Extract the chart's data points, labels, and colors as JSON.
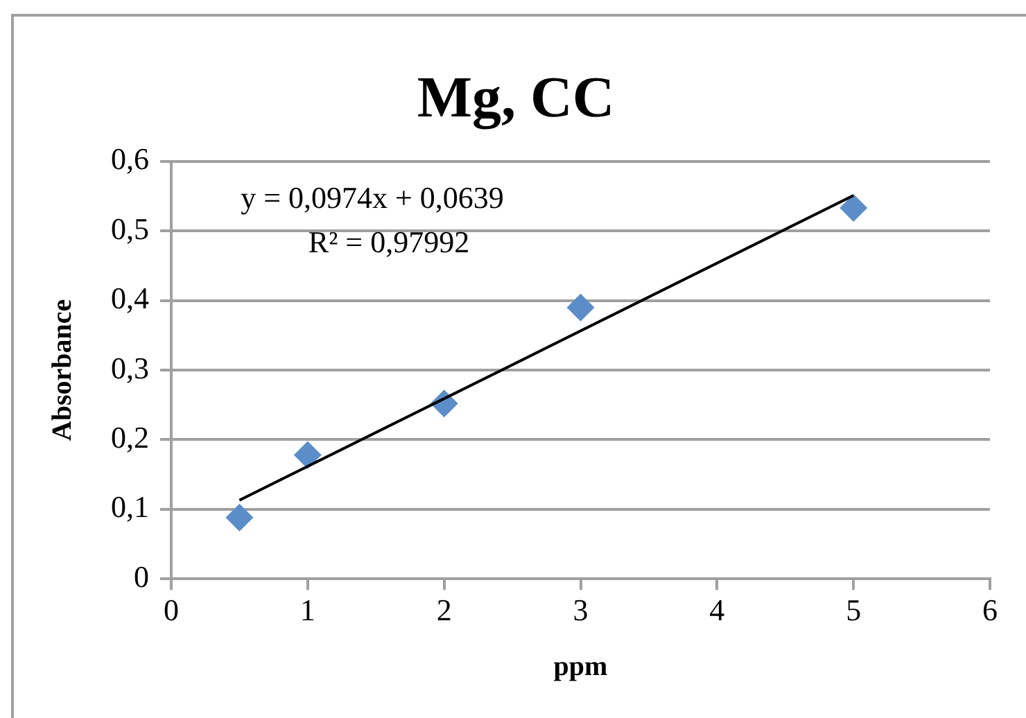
{
  "chart_data": {
    "type": "scatter",
    "title": "Mg, CC",
    "xlabel": "ppm",
    "ylabel": "Absorbance",
    "series": [
      {
        "type": "scatter",
        "color": "#5b8ec9",
        "marker": "diamond",
        "x": [
          0.5,
          1,
          2,
          3,
          5
        ],
        "values": [
          0.088,
          0.178,
          0.252,
          0.39,
          0.533
        ]
      },
      {
        "type": "line",
        "color": "#000000",
        "marker": "none",
        "line_style": "solid",
        "x": [
          0.5,
          5
        ],
        "values": [
          0.113,
          0.551
        ]
      }
    ],
    "xlim": [
      0,
      6
    ],
    "xticks": [
      0,
      1,
      2,
      3,
      4,
      5,
      6
    ],
    "ylim": [
      0,
      0.6
    ],
    "yticks": [
      0,
      {
        "value": 0.1,
        "label": "0,1"
      },
      {
        "value": 0.2,
        "label": "0,2"
      },
      {
        "value": 0.3,
        "label": "0,3"
      },
      {
        "value": 0.4,
        "label": "0,4"
      },
      {
        "value": 0.5,
        "label": "0,5"
      },
      {
        "value": 0.6,
        "label": "0,6"
      }
    ],
    "grid": "y",
    "legend": false,
    "annotations": [
      "y = 0,0974x + 0,0639",
      "R² = 0,97992"
    ]
  }
}
